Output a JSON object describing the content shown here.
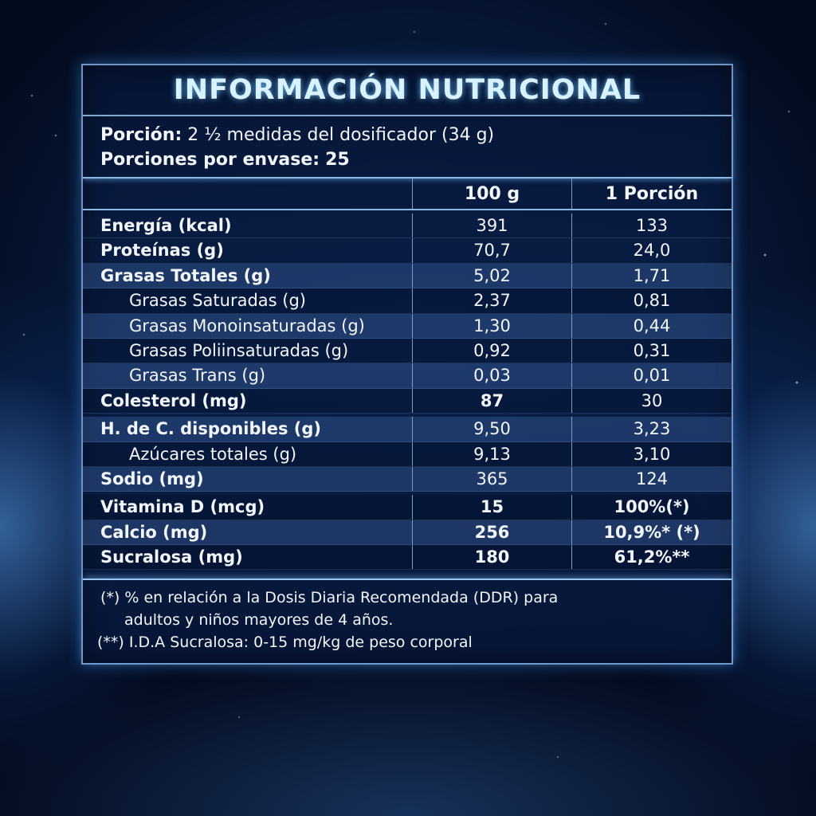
{
  "title": "INFORMACIÓN NUTRICIONAL",
  "serving": {
    "portion_label": "Porción:",
    "portion_value": "2 ½ medidas del dosificador (34 g)",
    "per_container_label": "Porciones por envase:",
    "per_container_value": "25"
  },
  "table": {
    "columns": [
      "",
      "100 g",
      "1 Porción"
    ],
    "rows": [
      {
        "label": "Energía (kcal)",
        "per100": "391",
        "perPortion": "133"
      },
      {
        "label": "Proteínas (g)",
        "per100": "70,7",
        "perPortion": "24,0"
      },
      {
        "label": "Grasas Totales (g)",
        "per100": "5,02",
        "perPortion": "1,71"
      },
      {
        "label": "Grasas Saturadas (g)",
        "per100": "2,37",
        "perPortion": "0,81"
      },
      {
        "label": "Grasas Monoinsaturadas (g)",
        "per100": "1,30",
        "perPortion": "0,44"
      },
      {
        "label": "Grasas Poliinsaturadas (g)",
        "per100": "0,92",
        "perPortion": "0,31"
      },
      {
        "label": "Grasas Trans (g)",
        "per100": "0,03",
        "perPortion": "0,01"
      },
      {
        "label": "Colesterol (mg)",
        "per100": "87",
        "perPortion": "30"
      },
      {
        "label": "H. de C. disponibles (g)",
        "per100": "9,50",
        "perPortion": "3,23"
      },
      {
        "label": "Azúcares totales (g)",
        "per100": "9,13",
        "perPortion": "3,10"
      },
      {
        "label": "Sodio (mg)",
        "per100": "365",
        "perPortion": "124"
      },
      {
        "label": "Vitamina D (mcg)",
        "per100": "15",
        "perPortion": "100%(*)"
      },
      {
        "label": "Calcio (mg)",
        "per100": "256",
        "perPortion": "10,9%* (*)"
      },
      {
        "label": "Sucralosa (mg)",
        "per100": "180",
        "perPortion": "61,2%**"
      }
    ]
  },
  "footnotes": {
    "note1_line1": "(*) % en relación a la Dosis Diaria Recomendada (DDR) para",
    "note1_line2": "adultos y niños mayores de 4 años.",
    "note2": "(**) I.D.A Sucralosa: 0-15 mg/kg de peso corporal"
  },
  "colors": {
    "panel_border": "#6f94c4",
    "title_glow": "#6ec8ff",
    "text": "#f2f6fb"
  }
}
